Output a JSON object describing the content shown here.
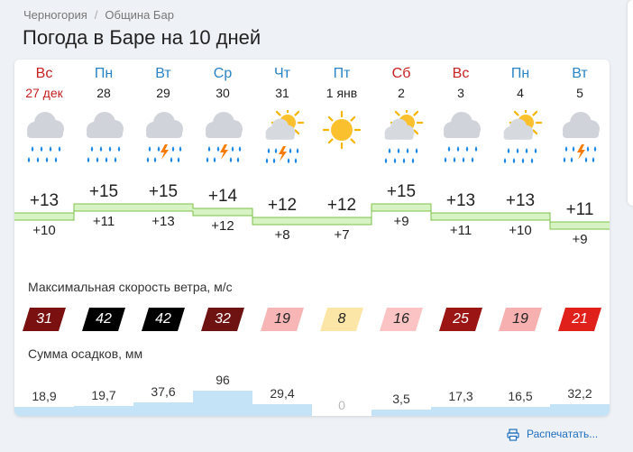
{
  "breadcrumb": {
    "country": "Черногория",
    "separator": "/",
    "municipality": "Община Бар"
  },
  "page_title": "Погода в Баре на 10 дней",
  "days": [
    {
      "dow": "Вс",
      "date": "27 дек",
      "weekend": true,
      "icon": "cloud-rain-icon",
      "tmax": "+13",
      "tmin": "+10",
      "wind": 31,
      "wind_color": "#7a1010",
      "precip": "18,9"
    },
    {
      "dow": "Пн",
      "date": "28",
      "weekend": false,
      "icon": "cloud-rain-icon",
      "tmax": "+15",
      "tmin": "+11",
      "wind": 42,
      "wind_color": "#000000",
      "precip": "19,7"
    },
    {
      "dow": "Вт",
      "date": "29",
      "weekend": false,
      "icon": "cloud-thunderstorm-icon",
      "tmax": "+15",
      "tmin": "+13",
      "wind": 42,
      "wind_color": "#000000",
      "precip": "37,6"
    },
    {
      "dow": "Ср",
      "date": "30",
      "weekend": false,
      "icon": "cloud-thunderstorm-icon",
      "tmax": "+14",
      "tmin": "+12",
      "wind": 32,
      "wind_color": "#6e1212",
      "precip": "96"
    },
    {
      "dow": "Чт",
      "date": "31",
      "weekend": false,
      "icon": "sun-thunderstorm-icon",
      "tmax": "+12",
      "tmin": "+8",
      "wind": 19,
      "wind_color": "#f7b5b5",
      "precip": "29,4"
    },
    {
      "dow": "Пт",
      "date": "1 янв",
      "weekend": false,
      "icon": "sun-icon",
      "tmax": "+12",
      "tmin": "+7",
      "wind": 8,
      "wind_color": "#fbe6a8",
      "precip": "0"
    },
    {
      "dow": "Сб",
      "date": "2",
      "weekend": true,
      "icon": "sun-cloud-rain-icon",
      "tmax": "+15",
      "tmin": "+9",
      "wind": 16,
      "wind_color": "#fbc3c3",
      "precip": "3,5"
    },
    {
      "dow": "Вс",
      "date": "3",
      "weekend": true,
      "icon": "cloud-rain-icon",
      "tmax": "+13",
      "tmin": "+11",
      "wind": 25,
      "wind_color": "#9b1515",
      "precip": "17,3"
    },
    {
      "dow": "Пн",
      "date": "4",
      "weekend": false,
      "icon": "sun-cloud-rain-icon",
      "tmax": "+13",
      "tmin": "+10",
      "wind": 19,
      "wind_color": "#f7b0b0",
      "precip": "16,5"
    },
    {
      "dow": "Вт",
      "date": "5",
      "weekend": false,
      "icon": "cloud-rain-thunder-icon",
      "tmax": "+11",
      "tmin": "+9",
      "wind": 21,
      "wind_color": "#e0201b",
      "precip": "32,2"
    }
  ],
  "temperature_values": {
    "max": [
      13,
      15,
      15,
      14,
      12,
      12,
      15,
      13,
      13,
      11
    ],
    "min": [
      10,
      11,
      13,
      12,
      8,
      7,
      9,
      11,
      10,
      9
    ]
  },
  "precip_values": [
    18.9,
    19.7,
    37.6,
    96,
    29.4,
    0,
    3.5,
    17.3,
    16.5,
    32.2
  ],
  "wind_section_label": "Максимальная скорость ветра, м/с",
  "precip_section_label": "Сумма осадков, мм",
  "print_label": "Распечатать...",
  "colors": {
    "weekday": "#2a83c5",
    "weekend": "#c62020",
    "temp_band": "#d7f3c4",
    "temp_line": "#7cc24a",
    "precip_bar": "#c5e3f7",
    "link": "#1e6fbf"
  }
}
